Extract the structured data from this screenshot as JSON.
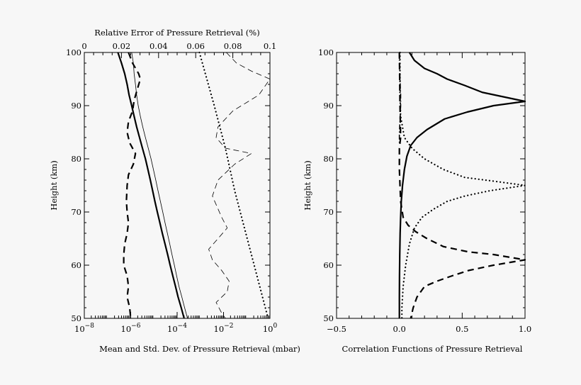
{
  "chart_data": [
    {
      "type": "line",
      "title": "Relative Error of Pressure Retrieval (%)",
      "xlabel": "Mean and Std. Dev. of Pressure Retrieval (mbar)",
      "ylabel": "Height (km)",
      "x_scale": "log",
      "xlim": [
        1e-08,
        1
      ],
      "x_ticks": [
        {
          "base": "10",
          "exp": "−8"
        },
        {
          "base": "10",
          "exp": "−6"
        },
        {
          "base": "10",
          "exp": "−4"
        },
        {
          "base": "10",
          "exp": "−2"
        },
        {
          "base": "10",
          "exp": "0"
        }
      ],
      "top_xlim": [
        0,
        0.1
      ],
      "top_ticks": [
        "0",
        "0.02",
        "0.04",
        "0.06",
        "0.08",
        "0.1"
      ],
      "ylim": [
        50,
        100
      ],
      "y_ticks": [
        "50",
        "60",
        "70",
        "80",
        "90",
        "100"
      ],
      "series": [
        {
          "style": "thick-solid",
          "axis": "bottom-log",
          "points": [
            [
              2.8e-07,
              100
            ],
            [
              4e-07,
              98
            ],
            [
              5.5e-07,
              96
            ],
            [
              7e-07,
              94
            ],
            [
              8.5e-07,
              92
            ],
            [
              1.1e-06,
              90
            ],
            [
              1.4e-06,
              88
            ],
            [
              1.8e-06,
              86
            ],
            [
              2.4e-06,
              84
            ],
            [
              3.2e-06,
              82
            ],
            [
              4.3e-06,
              80
            ],
            [
              5.5e-06,
              78
            ],
            [
              7e-06,
              76
            ],
            [
              8.8e-06,
              74
            ],
            [
              1.1e-05,
              72
            ],
            [
              1.4e-05,
              70
            ],
            [
              1.8e-05,
              68
            ],
            [
              2.3e-05,
              66
            ],
            [
              3e-05,
              64
            ],
            [
              3.9e-05,
              62
            ],
            [
              5e-05,
              60
            ],
            [
              6.5e-05,
              58
            ],
            [
              8.5e-05,
              56
            ],
            [
              0.00011,
              54
            ],
            [
              0.00015,
              52
            ],
            [
              0.0002,
              50
            ]
          ]
        },
        {
          "style": "thin-solid",
          "axis": "bottom-log",
          "points": [
            [
              1.1e-06,
              100
            ],
            [
              1.3e-06,
              98
            ],
            [
              1.4e-06,
              96
            ],
            [
              1.6e-06,
              94
            ],
            [
              1.8e-06,
              92
            ],
            [
              2.1e-06,
              90
            ],
            [
              2.6e-06,
              88
            ],
            [
              3.3e-06,
              86
            ],
            [
              4.3e-06,
              84
            ],
            [
              5.7e-06,
              82
            ],
            [
              7.5e-06,
              80
            ],
            [
              9.5e-06,
              78
            ],
            [
              1.2e-05,
              76
            ],
            [
              1.5e-05,
              74
            ],
            [
              1.9e-05,
              72
            ],
            [
              2.4e-05,
              70
            ],
            [
              3e-05,
              68
            ],
            [
              3.8e-05,
              66
            ],
            [
              4.8e-05,
              64
            ],
            [
              6e-05,
              62
            ],
            [
              7.6e-05,
              60
            ],
            [
              9.5e-05,
              58
            ],
            [
              0.00012,
              56
            ],
            [
              0.00016,
              54
            ],
            [
              0.00021,
              52
            ],
            [
              0.00028,
              50
            ]
          ]
        },
        {
          "style": "thick-dashed",
          "axis": "bottom-log",
          "points": [
            [
              8e-07,
              100
            ],
            [
              1.2e-06,
              98
            ],
            [
              2.2e-06,
              96
            ],
            [
              2.6e-06,
              95
            ],
            [
              1.9e-06,
              93
            ],
            [
              1.4e-06,
              91
            ],
            [
              1.2e-06,
              89
            ],
            [
              8e-07,
              87
            ],
            [
              7e-07,
              85
            ],
            [
              9e-07,
              83
            ],
            [
              1.6e-06,
              81
            ],
            [
              1.3e-06,
              79
            ],
            [
              8e-07,
              77
            ],
            [
              7e-07,
              75
            ],
            [
              6.5e-07,
              72
            ],
            [
              7e-07,
              70
            ],
            [
              8e-07,
              68
            ],
            [
              7e-07,
              66
            ],
            [
              5.5e-07,
              64
            ],
            [
              5e-07,
              62
            ],
            [
              5e-07,
              60
            ],
            [
              7e-07,
              58
            ],
            [
              8e-07,
              56
            ],
            [
              7e-07,
              54
            ],
            [
              9e-07,
              52
            ],
            [
              1e-06,
              50
            ]
          ]
        },
        {
          "style": "thin-dashed",
          "axis": "top-linear",
          "points": [
            [
              0.0765,
              100
            ],
            [
              0.082,
              98
            ],
            [
              0.09,
              96.5
            ],
            [
              0.1,
              95
            ],
            [
              0.094,
              92
            ],
            [
              0.08,
              89
            ],
            [
              0.072,
              86
            ],
            [
              0.071,
              84
            ],
            [
              0.076,
              82
            ],
            [
              0.09,
              81
            ],
            [
              0.081,
              79
            ],
            [
              0.072,
              76
            ],
            [
              0.069,
              73
            ],
            [
              0.074,
              69
            ],
            [
              0.077,
              67
            ],
            [
              0.072,
              65
            ],
            [
              0.067,
              63
            ],
            [
              0.069,
              61
            ],
            [
              0.074,
              59
            ],
            [
              0.078,
              57
            ],
            [
              0.077,
              55
            ],
            [
              0.071,
              53
            ],
            [
              0.074,
              51
            ],
            [
              0.076,
              50
            ]
          ]
        },
        {
          "style": "dotted",
          "axis": "top-linear",
          "points": [
            [
              0.062,
              100
            ],
            [
              0.07,
              90
            ],
            [
              0.076,
              82
            ],
            [
              0.081,
              74
            ],
            [
              0.087,
              66
            ],
            [
              0.093,
              58
            ],
            [
              0.099,
              50
            ]
          ]
        }
      ]
    },
    {
      "type": "line",
      "xlabel": "Correlation Functions of Pressure Retrieval",
      "ylabel": "Height (km)",
      "xlim": [
        -0.5,
        1.0
      ],
      "x_ticks": [
        "−0.5",
        "0.0",
        "0.5",
        "1.0"
      ],
      "ylim": [
        50,
        100
      ],
      "y_ticks": [
        "50",
        "60",
        "70",
        "80",
        "90",
        "100"
      ],
      "series": [
        {
          "style": "thick-solid",
          "points": [
            [
              0.08,
              100
            ],
            [
              0.12,
              98.5
            ],
            [
              0.2,
              97
            ],
            [
              0.3,
              96
            ],
            [
              0.38,
              95
            ],
            [
              0.52,
              93.8
            ],
            [
              0.66,
              92.5
            ],
            [
              1.0,
              90.8
            ],
            [
              0.75,
              90
            ],
            [
              0.54,
              88.8
            ],
            [
              0.36,
              87.5
            ],
            [
              0.22,
              85.5
            ],
            [
              0.14,
              84
            ],
            [
              0.09,
              82.5
            ],
            [
              0.06,
              80.5
            ],
            [
              0.04,
              78
            ],
            [
              0.025,
              75
            ],
            [
              0.015,
              72
            ],
            [
              0.01,
              69
            ],
            [
              0.006,
              66
            ],
            [
              0.003,
              62
            ],
            [
              0.001,
              58
            ],
            [
              0,
              54
            ],
            [
              0,
              50
            ]
          ]
        },
        {
          "style": "dotted",
          "points": [
            [
              0.005,
              100
            ],
            [
              0.005,
              92
            ],
            [
              0.01,
              88
            ],
            [
              0.04,
              84
            ],
            [
              0.1,
              82
            ],
            [
              0.2,
              80
            ],
            [
              0.35,
              78
            ],
            [
              0.52,
              76.5
            ],
            [
              0.75,
              75.8
            ],
            [
              1.0,
              75
            ],
            [
              0.72,
              74
            ],
            [
              0.52,
              73
            ],
            [
              0.38,
              72
            ],
            [
              0.27,
              70.5
            ],
            [
              0.18,
              69
            ],
            [
              0.12,
              67
            ],
            [
              0.08,
              64
            ],
            [
              0.05,
              60
            ],
            [
              0.03,
              56
            ],
            [
              0.02,
              52
            ],
            [
              0.02,
              50
            ]
          ]
        },
        {
          "style": "thick-dashed",
          "points": [
            [
              0.0,
              100
            ],
            [
              0.005,
              90
            ],
            [
              0.01,
              84
            ],
            [
              0.0,
              82
            ],
            [
              0.0,
              78
            ],
            [
              0.01,
              72
            ],
            [
              0.03,
              69
            ],
            [
              0.07,
              67.5
            ],
            [
              0.13,
              66.3
            ],
            [
              0.22,
              65
            ],
            [
              0.35,
              63.5
            ],
            [
              0.55,
              62.5
            ],
            [
              0.75,
              62
            ],
            [
              1.0,
              61
            ],
            [
              0.75,
              60
            ],
            [
              0.55,
              59
            ],
            [
              0.42,
              58
            ],
            [
              0.3,
              57
            ],
            [
              0.2,
              56
            ],
            [
              0.14,
              54
            ],
            [
              0.11,
              52
            ],
            [
              0.09,
              50
            ]
          ]
        },
        {
          "style": "dash-dot",
          "points": [
            [
              0.0,
              100
            ],
            [
              0.0,
              98
            ],
            [
              0.005,
              95
            ],
            [
              0.01,
              92
            ],
            [
              0.01,
              90
            ],
            [
              0.005,
              87
            ],
            [
              0.0,
              85
            ],
            [
              0.0,
              83
            ]
          ]
        }
      ]
    }
  ]
}
